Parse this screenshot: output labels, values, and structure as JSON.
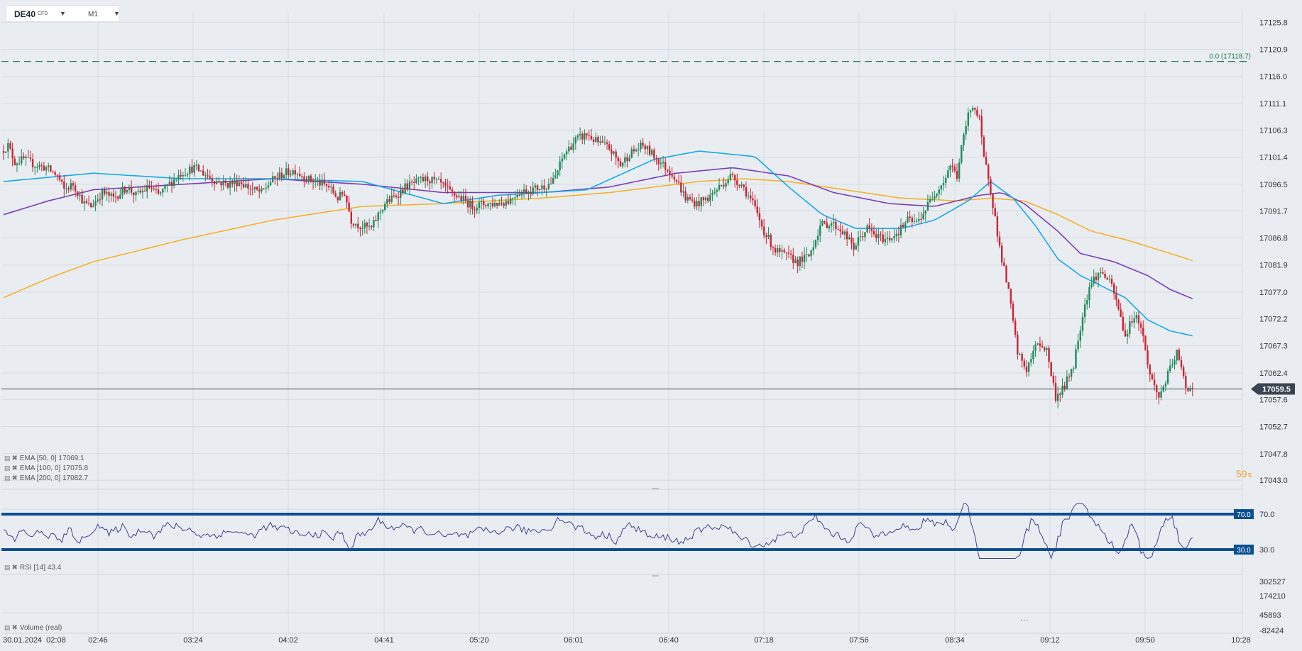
{
  "instrument": {
    "symbol": "DE40",
    "type": "CFD",
    "timeframe": "M1"
  },
  "colors": {
    "background": "#e9edf1",
    "grid": "#d6dbe1",
    "bull_candle": "#1e8a5a",
    "bear_candle": "#cc2233",
    "ema50": "#18a8e8",
    "ema100": "#7a3fb8",
    "ema200": "#f5b22a",
    "fib_line": "#2e7d4f",
    "rsi_line": "#3d3f8f",
    "rsi_level": "#0b4f92",
    "price_label_bg": "#3a4450",
    "countdown": "#f0a030"
  },
  "legend": {
    "ema50": "EMA  [50,  0]  17069.1",
    "ema100": "EMA  [100,  0]  17075.8",
    "ema200": "EMA  [200,  0]  17082.7",
    "rsi": "RSI  [14]  43.4",
    "volume": "Volume  (real)"
  },
  "countdown": {
    "value": "59",
    "unit": "s"
  },
  "ellipsis": "...",
  "chart_data": {
    "type": "candlestick",
    "price_axis": {
      "ticks": [
        "17125.8",
        "17120.9",
        "17116.0",
        "17111.1",
        "17106.3",
        "17101.4",
        "17096.5",
        "17091.7",
        "17086.8",
        "17081.9",
        "17077.0",
        "17072.2",
        "17067.3",
        "17062.4",
        "17057.6",
        "17052.7",
        "17047.8",
        "17043.0"
      ],
      "range": [
        17043.0,
        17125.8
      ]
    },
    "time_axis": {
      "ticks": [
        "30.01.2024  02:08",
        "02:46",
        "03:24",
        "04:02",
        "04:41",
        "05:20",
        "06:01",
        "06:40",
        "07:18",
        "07:56",
        "08:34",
        "09:12",
        "09:50",
        "10:28"
      ],
      "data_range": [
        "02:08",
        "09:58"
      ]
    },
    "current_price": "17059.5",
    "fibonacci_level": {
      "label": "0.0 (17118.7)",
      "value": 17118.7
    },
    "price_path": [
      [
        0,
        17102.5
      ],
      [
        3,
        17103.5
      ],
      [
        6,
        17100.5
      ],
      [
        10,
        17101
      ],
      [
        15,
        17100
      ],
      [
        20,
        17099.5
      ],
      [
        25,
        17098
      ],
      [
        28,
        17095.5
      ],
      [
        32,
        17096.5
      ],
      [
        37,
        17093
      ],
      [
        40,
        17092.5
      ],
      [
        45,
        17095
      ],
      [
        50,
        17094
      ],
      [
        56,
        17096
      ],
      [
        60,
        17094.5
      ],
      [
        66,
        17096
      ],
      [
        70,
        17094.5
      ],
      [
        76,
        17097
      ],
      [
        80,
        17098.5
      ],
      [
        86,
        17099.5
      ],
      [
        92,
        17098
      ],
      [
        96,
        17097
      ],
      [
        101,
        17096.5
      ],
      [
        106,
        17097
      ],
      [
        112,
        17095.5
      ],
      [
        116,
        17095
      ],
      [
        120,
        17097
      ],
      [
        126,
        17098.5
      ],
      [
        131,
        17099
      ],
      [
        136,
        17097.5
      ],
      [
        140,
        17097
      ],
      [
        146,
        17096
      ],
      [
        150,
        17094
      ],
      [
        153,
        17095
      ],
      [
        156,
        17090
      ],
      [
        160,
        17089
      ],
      [
        165,
        17088.5
      ],
      [
        168,
        17091
      ],
      [
        171,
        17093
      ],
      [
        176,
        17094.5
      ],
      [
        180,
        17096
      ],
      [
        186,
        17097
      ],
      [
        190,
        17097.5
      ],
      [
        196,
        17096.5
      ],
      [
        200,
        17095
      ],
      [
        205,
        17094
      ],
      [
        210,
        17092.5
      ],
      [
        216,
        17093
      ],
      [
        220,
        17093
      ],
      [
        226,
        17093.5
      ],
      [
        230,
        17095
      ],
      [
        236,
        17095.5
      ],
      [
        241,
        17096
      ],
      [
        246,
        17097
      ],
      [
        251,
        17102
      ],
      [
        256,
        17104.5
      ],
      [
        261,
        17105.5
      ],
      [
        266,
        17104
      ],
      [
        271,
        17103
      ],
      [
        276,
        17100
      ],
      [
        280,
        17102
      ],
      [
        286,
        17103.5
      ],
      [
        290,
        17102
      ],
      [
        295,
        17100
      ],
      [
        300,
        17098
      ],
      [
        305,
        17094
      ],
      [
        310,
        17093
      ],
      [
        315,
        17094
      ],
      [
        320,
        17096
      ],
      [
        325,
        17098
      ],
      [
        330,
        17096.5
      ],
      [
        335,
        17093
      ],
      [
        340,
        17088
      ],
      [
        345,
        17084.5
      ],
      [
        350,
        17083.5
      ],
      [
        355,
        17082.5
      ],
      [
        360,
        17083.5
      ],
      [
        365,
        17089
      ],
      [
        370,
        17089.5
      ],
      [
        375,
        17088
      ],
      [
        380,
        17085
      ],
      [
        383,
        17087
      ],
      [
        386,
        17088.5
      ],
      [
        390,
        17087
      ],
      [
        395,
        17086.5
      ],
      [
        400,
        17088
      ],
      [
        404,
        17090
      ],
      [
        408,
        17089.5
      ],
      [
        412,
        17092
      ],
      [
        416,
        17095
      ],
      [
        420,
        17097
      ],
      [
        423,
        17100
      ],
      [
        426,
        17098
      ],
      [
        428,
        17103
      ],
      [
        431,
        17109
      ],
      [
        433,
        17111
      ],
      [
        436,
        17108
      ],
      [
        438,
        17101
      ],
      [
        440,
        17098
      ],
      [
        442,
        17093
      ],
      [
        445,
        17085
      ],
      [
        449,
        17077
      ],
      [
        453,
        17066
      ],
      [
        457,
        17063
      ],
      [
        462,
        17068
      ],
      [
        466,
        17066.5
      ],
      [
        470,
        17058
      ],
      [
        474,
        17060
      ],
      [
        478,
        17064
      ],
      [
        482,
        17073
      ],
      [
        485,
        17078
      ],
      [
        488,
        17080
      ],
      [
        491,
        17080.5
      ],
      [
        495,
        17078
      ],
      [
        498,
        17074
      ],
      [
        501,
        17069
      ],
      [
        505,
        17073
      ],
      [
        508,
        17071
      ],
      [
        512,
        17062
      ],
      [
        516,
        17058
      ],
      [
        520,
        17062
      ],
      [
        524,
        17066
      ],
      [
        528,
        17060
      ],
      [
        530,
        17059.5
      ]
    ],
    "ema50": [
      [
        0,
        17097
      ],
      [
        40,
        17098.5
      ],
      [
        80,
        17097.5
      ],
      [
        120,
        17097.5
      ],
      [
        160,
        17097
      ],
      [
        196,
        17093
      ],
      [
        220,
        17094.5
      ],
      [
        260,
        17095.5
      ],
      [
        290,
        17101
      ],
      [
        310,
        17102.5
      ],
      [
        335,
        17101.5
      ],
      [
        350,
        17096
      ],
      [
        365,
        17091
      ],
      [
        380,
        17088.5
      ],
      [
        400,
        17088.5
      ],
      [
        415,
        17090
      ],
      [
        430,
        17093.5
      ],
      [
        440,
        17097
      ],
      [
        450,
        17094
      ],
      [
        460,
        17089
      ],
      [
        470,
        17083
      ],
      [
        480,
        17080
      ],
      [
        490,
        17078
      ],
      [
        500,
        17076
      ],
      [
        510,
        17072
      ],
      [
        520,
        17070
      ],
      [
        530,
        17069.1
      ]
    ],
    "ema100": [
      [
        0,
        17091
      ],
      [
        20,
        17093.5
      ],
      [
        40,
        17095.5
      ],
      [
        80,
        17096.5
      ],
      [
        120,
        17097.5
      ],
      [
        160,
        17096.5
      ],
      [
        196,
        17095
      ],
      [
        240,
        17095
      ],
      [
        270,
        17096
      ],
      [
        300,
        17098.5
      ],
      [
        325,
        17099.5
      ],
      [
        350,
        17098
      ],
      [
        370,
        17095
      ],
      [
        395,
        17093
      ],
      [
        415,
        17092.5
      ],
      [
        435,
        17094.5
      ],
      [
        445,
        17095
      ],
      [
        455,
        17093
      ],
      [
        470,
        17088
      ],
      [
        480,
        17084
      ],
      [
        495,
        17082.5
      ],
      [
        510,
        17080
      ],
      [
        520,
        17077.5
      ],
      [
        530,
        17075.8
      ]
    ],
    "ema200": [
      [
        0,
        17076
      ],
      [
        20,
        17079.5
      ],
      [
        40,
        17082.5
      ],
      [
        80,
        17086.5
      ],
      [
        120,
        17090
      ],
      [
        160,
        17092.5
      ],
      [
        196,
        17093
      ],
      [
        240,
        17094
      ],
      [
        270,
        17095
      ],
      [
        310,
        17097
      ],
      [
        330,
        17097.5
      ],
      [
        350,
        17097
      ],
      [
        375,
        17095.5
      ],
      [
        400,
        17094
      ],
      [
        425,
        17093.5
      ],
      [
        440,
        17094
      ],
      [
        455,
        17093.5
      ],
      [
        470,
        17091
      ],
      [
        485,
        17088
      ],
      [
        500,
        17086.5
      ],
      [
        520,
        17084
      ],
      [
        530,
        17082.7
      ]
    ],
    "rsi": {
      "period": 14,
      "current": 43.4,
      "levels": [
        70.0,
        30.0
      ],
      "ticks": [
        "70.0",
        "30.0"
      ]
    },
    "volume": {
      "ticks": [
        "302527",
        "174210",
        "45893",
        "-82424"
      ],
      "label": "Volume  (real)"
    },
    "grid": true
  }
}
